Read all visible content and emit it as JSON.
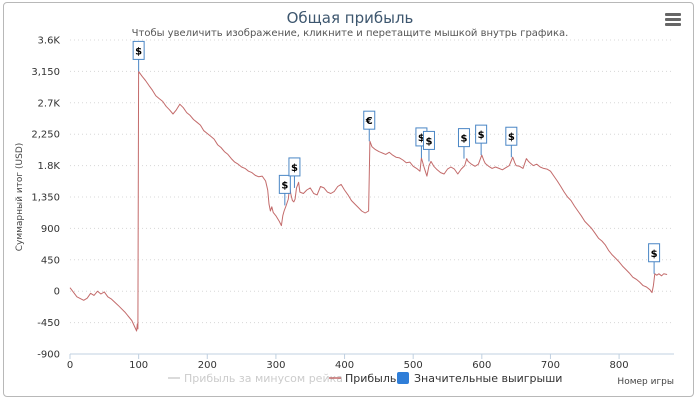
{
  "title": "Общая прибыль",
  "subtitle": "Чтобы увеличить изображение, кликните и перетащите мышкой внутрь графика.",
  "menu_icon": "hamburger-menu-icon",
  "colors": {
    "profit": "#c36b6b",
    "rake_series": "#cfcfcf",
    "flag_border": "#4a86c5",
    "legend_flag": "#2f7ed8",
    "grid": "#d8d8d8"
  },
  "chart_data": {
    "type": "line",
    "title": "Общая прибыль",
    "xlabel": "Номер игры",
    "ylabel": "Суммарный итог (USD)",
    "xlim": [
      0,
      880
    ],
    "ylim": [
      -900,
      3600
    ],
    "x_ticks": [
      "0",
      "100",
      "200",
      "300",
      "400",
      "500",
      "600",
      "700",
      "800"
    ],
    "y_ticks": [
      "3.6K",
      "3,150",
      "2.7K",
      "2,250",
      "1.8K",
      "1,350",
      "900",
      "450",
      "0",
      "-450",
      "-900"
    ],
    "grid": "horizontal dotted",
    "legend_position": "bottom",
    "series": [
      {
        "name": "Прибыль за минусом рейка",
        "visible": false,
        "points": []
      },
      {
        "name": "Прибыль",
        "points": [
          [
            0,
            50
          ],
          [
            10,
            -80
          ],
          [
            20,
            -130
          ],
          [
            25,
            -100
          ],
          [
            30,
            -30
          ],
          [
            35,
            -60
          ],
          [
            40,
            0
          ],
          [
            45,
            -40
          ],
          [
            50,
            -10
          ],
          [
            55,
            -80
          ],
          [
            60,
            -110
          ],
          [
            70,
            -200
          ],
          [
            80,
            -300
          ],
          [
            90,
            -420
          ],
          [
            97,
            -570
          ],
          [
            98,
            -470
          ],
          [
            99,
            -540
          ],
          [
            100,
            3150
          ],
          [
            105,
            3080
          ],
          [
            110,
            3020
          ],
          [
            115,
            2950
          ],
          [
            120,
            2880
          ],
          [
            125,
            2800
          ],
          [
            130,
            2760
          ],
          [
            135,
            2720
          ],
          [
            140,
            2650
          ],
          [
            145,
            2600
          ],
          [
            150,
            2540
          ],
          [
            155,
            2600
          ],
          [
            160,
            2680
          ],
          [
            165,
            2630
          ],
          [
            170,
            2560
          ],
          [
            175,
            2520
          ],
          [
            180,
            2460
          ],
          [
            185,
            2420
          ],
          [
            190,
            2380
          ],
          [
            195,
            2300
          ],
          [
            200,
            2260
          ],
          [
            205,
            2220
          ],
          [
            210,
            2180
          ],
          [
            215,
            2100
          ],
          [
            220,
            2060
          ],
          [
            225,
            2000
          ],
          [
            230,
            1960
          ],
          [
            235,
            1900
          ],
          [
            240,
            1850
          ],
          [
            245,
            1820
          ],
          [
            250,
            1780
          ],
          [
            255,
            1760
          ],
          [
            260,
            1720
          ],
          [
            265,
            1700
          ],
          [
            270,
            1660
          ],
          [
            275,
            1640
          ],
          [
            280,
            1650
          ],
          [
            285,
            1580
          ],
          [
            288,
            1450
          ],
          [
            290,
            1250
          ],
          [
            292,
            1150
          ],
          [
            294,
            1210
          ],
          [
            296,
            1130
          ],
          [
            300,
            1080
          ],
          [
            305,
            1000
          ],
          [
            308,
            940
          ],
          [
            310,
            1080
          ],
          [
            312,
            1150
          ],
          [
            315,
            1230
          ],
          [
            318,
            1320
          ],
          [
            320,
            1500
          ],
          [
            322,
            1380
          ],
          [
            324,
            1300
          ],
          [
            326,
            1280
          ],
          [
            328,
            1320
          ],
          [
            330,
            1480
          ],
          [
            333,
            1560
          ],
          [
            335,
            1420
          ],
          [
            340,
            1400
          ],
          [
            345,
            1450
          ],
          [
            350,
            1480
          ],
          [
            355,
            1400
          ],
          [
            360,
            1380
          ],
          [
            365,
            1500
          ],
          [
            370,
            1480
          ],
          [
            375,
            1420
          ],
          [
            380,
            1400
          ],
          [
            385,
            1430
          ],
          [
            390,
            1500
          ],
          [
            395,
            1530
          ],
          [
            400,
            1450
          ],
          [
            405,
            1380
          ],
          [
            410,
            1300
          ],
          [
            415,
            1250
          ],
          [
            420,
            1200
          ],
          [
            425,
            1150
          ],
          [
            430,
            1120
          ],
          [
            435,
            1150
          ],
          [
            437,
            2150
          ],
          [
            440,
            2070
          ],
          [
            445,
            2030
          ],
          [
            450,
            2000
          ],
          [
            455,
            1980
          ],
          [
            460,
            1960
          ],
          [
            465,
            1990
          ],
          [
            470,
            1950
          ],
          [
            475,
            1920
          ],
          [
            480,
            1910
          ],
          [
            485,
            1880
          ],
          [
            490,
            1840
          ],
          [
            495,
            1850
          ],
          [
            500,
            1790
          ],
          [
            505,
            1760
          ],
          [
            510,
            1720
          ],
          [
            512,
            1910
          ],
          [
            514,
            1840
          ],
          [
            516,
            1770
          ],
          [
            520,
            1650
          ],
          [
            523,
            1800
          ],
          [
            526,
            1860
          ],
          [
            530,
            1790
          ],
          [
            535,
            1740
          ],
          [
            540,
            1700
          ],
          [
            545,
            1680
          ],
          [
            550,
            1750
          ],
          [
            555,
            1780
          ],
          [
            560,
            1750
          ],
          [
            565,
            1680
          ],
          [
            570,
            1750
          ],
          [
            575,
            1800
          ],
          [
            578,
            1900
          ],
          [
            580,
            1860
          ],
          [
            585,
            1820
          ],
          [
            590,
            1790
          ],
          [
            595,
            1820
          ],
          [
            600,
            1950
          ],
          [
            603,
            1870
          ],
          [
            605,
            1830
          ],
          [
            610,
            1790
          ],
          [
            615,
            1760
          ],
          [
            620,
            1780
          ],
          [
            625,
            1760
          ],
          [
            630,
            1740
          ],
          [
            635,
            1770
          ],
          [
            640,
            1800
          ],
          [
            645,
            1920
          ],
          [
            648,
            1840
          ],
          [
            650,
            1800
          ],
          [
            655,
            1790
          ],
          [
            660,
            1760
          ],
          [
            665,
            1900
          ],
          [
            668,
            1860
          ],
          [
            670,
            1840
          ],
          [
            675,
            1800
          ],
          [
            680,
            1820
          ],
          [
            685,
            1780
          ],
          [
            690,
            1760
          ],
          [
            695,
            1750
          ],
          [
            700,
            1720
          ],
          [
            705,
            1650
          ],
          [
            710,
            1580
          ],
          [
            715,
            1500
          ],
          [
            720,
            1420
          ],
          [
            725,
            1350
          ],
          [
            730,
            1300
          ],
          [
            735,
            1220
          ],
          [
            740,
            1150
          ],
          [
            745,
            1080
          ],
          [
            750,
            1000
          ],
          [
            755,
            950
          ],
          [
            760,
            900
          ],
          [
            765,
            830
          ],
          [
            770,
            760
          ],
          [
            775,
            720
          ],
          [
            780,
            660
          ],
          [
            785,
            580
          ],
          [
            790,
            520
          ],
          [
            795,
            470
          ],
          [
            800,
            420
          ],
          [
            805,
            360
          ],
          [
            810,
            310
          ],
          [
            815,
            260
          ],
          [
            820,
            200
          ],
          [
            825,
            170
          ],
          [
            830,
            130
          ],
          [
            835,
            80
          ],
          [
            840,
            60
          ],
          [
            845,
            20
          ],
          [
            848,
            -20
          ],
          [
            850,
            80
          ],
          [
            852,
            250
          ],
          [
            855,
            230
          ],
          [
            858,
            250
          ],
          [
            862,
            220
          ],
          [
            865,
            250
          ],
          [
            870,
            240
          ]
        ]
      },
      {
        "name": "Значительные выигрыши",
        "type": "flags"
      }
    ],
    "flags": [
      {
        "x": 100,
        "label": "$"
      },
      {
        "x": 313,
        "label": "$"
      },
      {
        "x": 327,
        "label": "$"
      },
      {
        "x": 436,
        "label": "€"
      },
      {
        "x": 512,
        "label": "$"
      },
      {
        "x": 523,
        "label": "$"
      },
      {
        "x": 574,
        "label": "$"
      },
      {
        "x": 599,
        "label": "$"
      },
      {
        "x": 643,
        "label": "$"
      },
      {
        "x": 851,
        "label": "$"
      }
    ]
  }
}
